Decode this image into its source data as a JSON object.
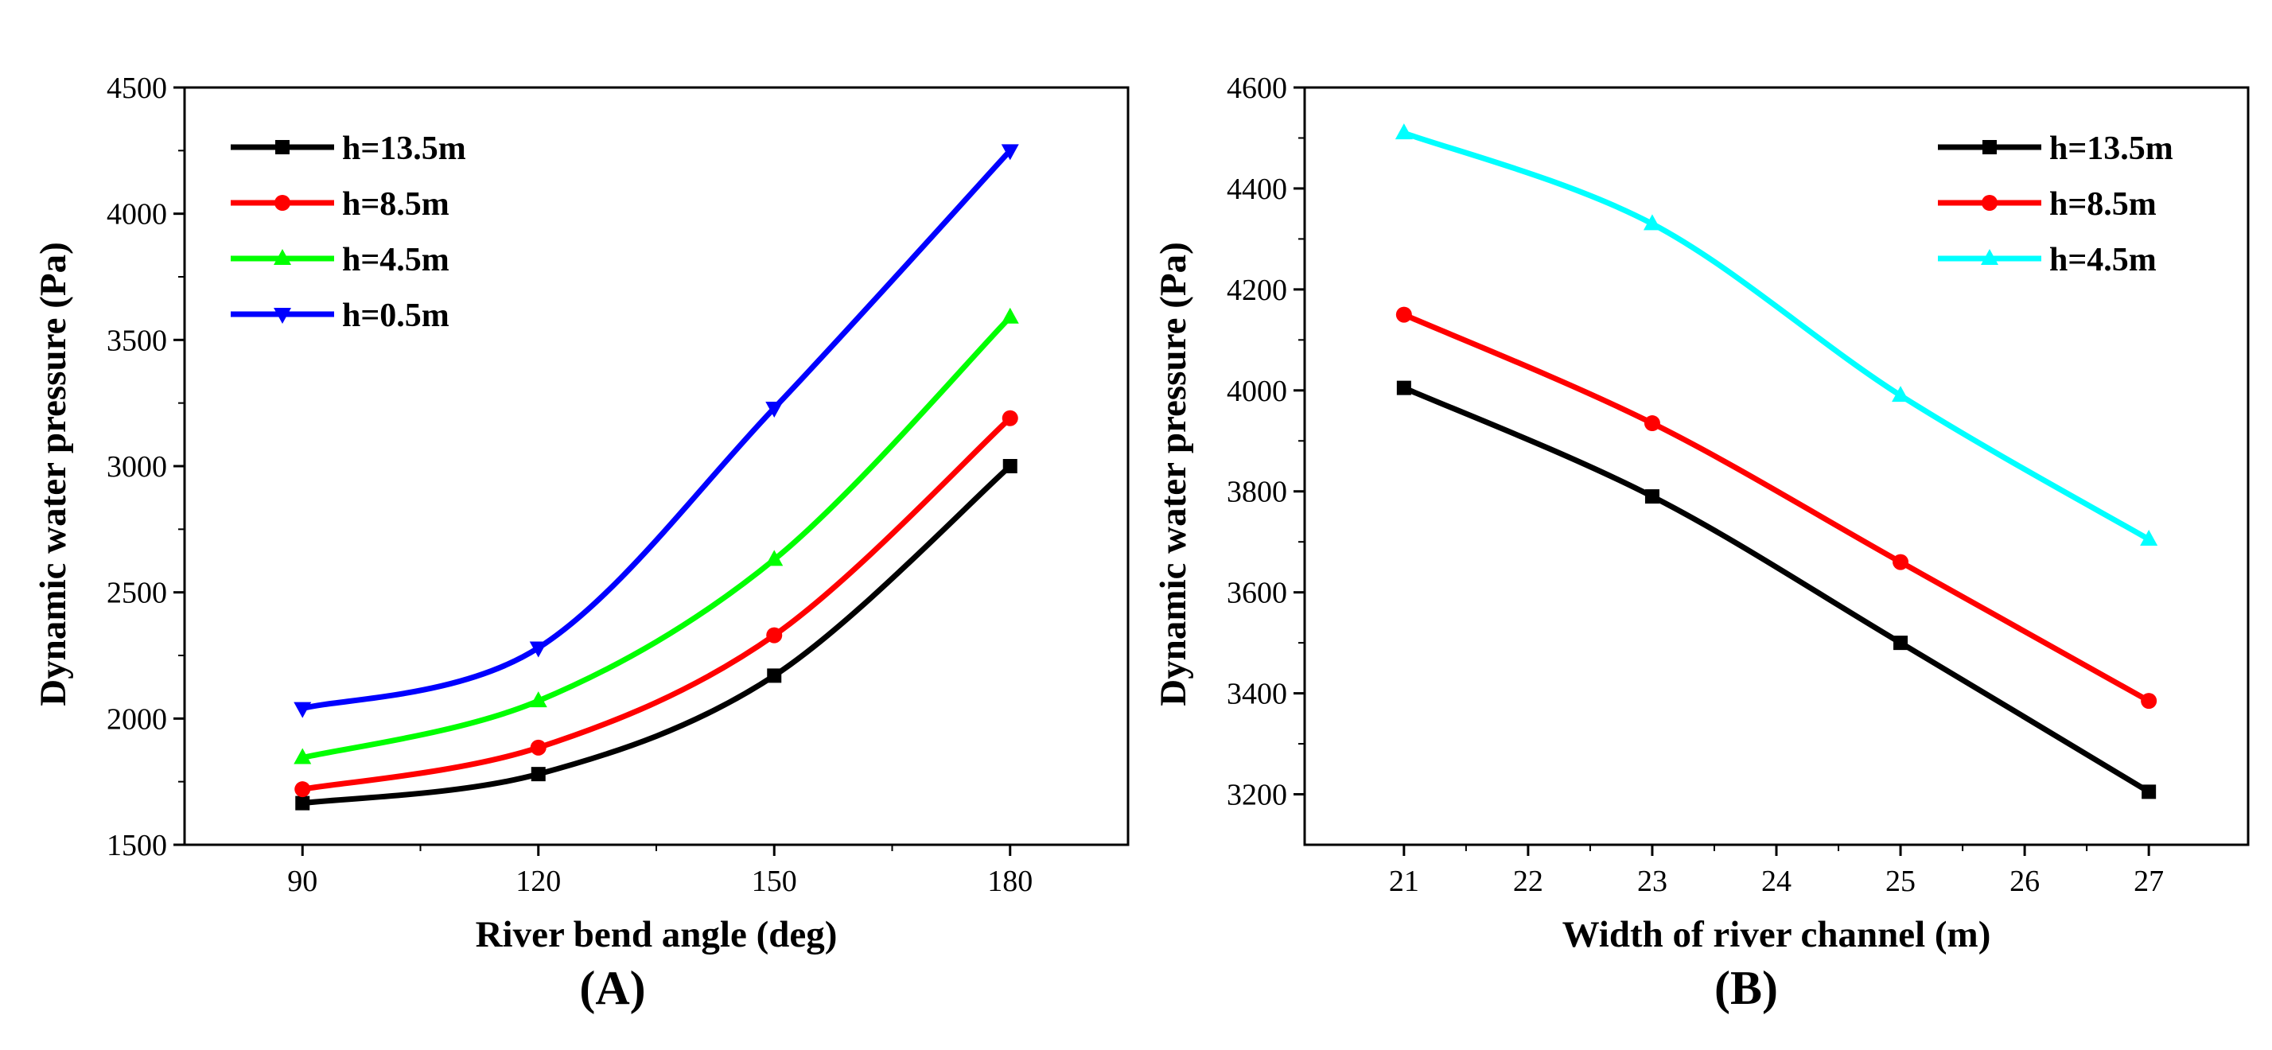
{
  "chart_data": [
    {
      "type": "line",
      "panel_label": "(A)",
      "xlabel": "River bend angle (deg)",
      "ylabel": "Dynamic water pressure (Pa)",
      "x": [
        90,
        120,
        150,
        180
      ],
      "xlim": [
        75,
        195
      ],
      "xticks": [
        90,
        120,
        150,
        180
      ],
      "ylim": [
        1500,
        4500
      ],
      "yticks": [
        1500,
        2000,
        2500,
        3000,
        3500,
        4000,
        4500
      ],
      "legend_position": "top-left",
      "series": [
        {
          "name": "h=13.5m",
          "color": "#000000",
          "marker": "square",
          "values": [
            1665,
            1780,
            2170,
            3000
          ]
        },
        {
          "name": "h=8.5m",
          "color": "#ff0000",
          "marker": "circle",
          "values": [
            1720,
            1885,
            2330,
            3190
          ]
        },
        {
          "name": "h=4.5m",
          "color": "#00ff00",
          "marker": "triangle-up",
          "values": [
            1845,
            2070,
            2630,
            3590
          ]
        },
        {
          "name": "h=0.5m",
          "color": "#0000ff",
          "marker": "triangle-down",
          "values": [
            2040,
            2280,
            3230,
            4250
          ]
        }
      ]
    },
    {
      "type": "line",
      "panel_label": "(B)",
      "xlabel": "Width of river channel (m)",
      "ylabel": "Dynamic water pressure (Pa)",
      "x": [
        21,
        23,
        25,
        27
      ],
      "xlim": [
        20.2,
        27.8
      ],
      "xticks": [
        21,
        22,
        23,
        24,
        25,
        26,
        27
      ],
      "ylim": [
        3100,
        4600
      ],
      "yticks": [
        3200,
        3400,
        3600,
        3800,
        4000,
        4200,
        4400,
        4600
      ],
      "legend_position": "top-right",
      "series": [
        {
          "name": "h=13.5m",
          "color": "#000000",
          "marker": "square",
          "values": [
            4005,
            3790,
            3500,
            3205
          ]
        },
        {
          "name": "h=8.5m",
          "color": "#ff0000",
          "marker": "circle",
          "values": [
            4150,
            3935,
            3660,
            3385
          ]
        },
        {
          "name": "h=4.5m",
          "color": "#00ffff",
          "marker": "triangle-up",
          "values": [
            4510,
            4330,
            3990,
            3705
          ]
        }
      ]
    }
  ]
}
